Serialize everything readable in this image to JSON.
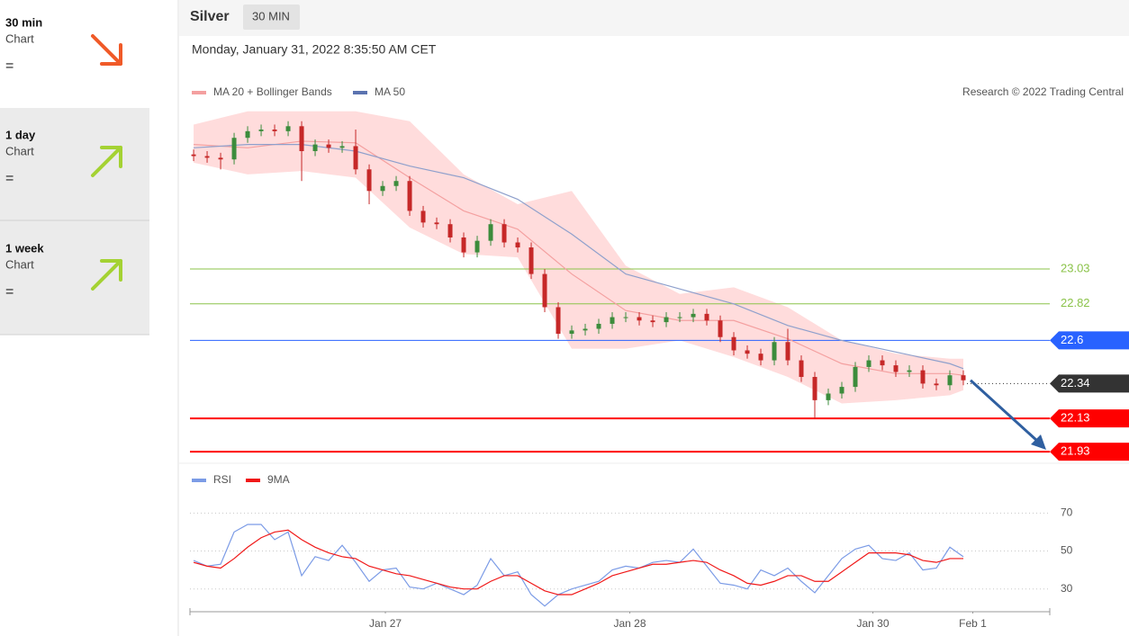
{
  "sidebar": [
    {
      "period": "30 min",
      "kind": "Chart",
      "signal": "="
    },
    {
      "period": "1 day",
      "kind": "Chart",
      "signal": "="
    },
    {
      "period": "1 week",
      "kind": "Chart",
      "signal": "="
    }
  ],
  "header": {
    "instrument": "Silver",
    "timeframe": "30 MIN",
    "timestamp": "Monday, January 31, 2022 8:35:50 AM CET"
  },
  "chart_data": [
    {
      "type": "candlestick",
      "credit": "Research © 2022 Trading Central",
      "ylim": [
        21.86,
        24.0
      ],
      "xlim": [
        -0.27,
        63.4
      ],
      "up_color": "#3c8c3c",
      "down_color": "#c62828",
      "open": [
        23.72,
        23.71,
        23.7,
        23.69,
        23.82,
        23.86,
        23.87,
        23.86,
        23.89,
        23.74,
        23.78,
        23.76,
        23.77,
        23.63,
        23.5,
        23.53,
        23.56,
        23.38,
        23.31,
        23.3,
        23.22,
        23.13,
        23.2,
        23.3,
        23.19,
        23.16,
        23.0,
        22.8,
        22.64,
        22.66,
        22.67,
        22.7,
        22.74,
        22.74,
        22.72,
        22.71,
        22.74,
        22.74,
        22.76,
        22.72,
        22.62,
        22.54,
        22.52,
        22.48,
        22.59,
        22.48,
        22.38,
        22.24,
        22.28,
        22.32,
        22.44,
        22.48,
        22.45,
        22.41,
        22.42,
        22.34,
        22.33,
        22.39
      ],
      "high": [
        23.75,
        23.74,
        23.73,
        23.85,
        23.89,
        23.9,
        23.9,
        23.92,
        23.92,
        23.81,
        23.81,
        23.8,
        23.87,
        23.66,
        23.56,
        23.59,
        23.59,
        23.41,
        23.34,
        23.33,
        23.25,
        23.23,
        23.33,
        23.33,
        23.22,
        23.19,
        23.03,
        22.83,
        22.69,
        22.7,
        22.73,
        22.77,
        22.77,
        22.77,
        22.75,
        22.77,
        22.77,
        22.79,
        22.79,
        22.75,
        22.65,
        22.57,
        22.55,
        22.62,
        22.67,
        22.51,
        22.41,
        22.31,
        22.35,
        22.47,
        22.51,
        22.51,
        22.48,
        22.45,
        22.45,
        22.37,
        22.42,
        22.42
      ],
      "low": [
        23.68,
        23.67,
        23.63,
        23.66,
        23.79,
        23.83,
        23.83,
        23.83,
        23.56,
        23.71,
        23.73,
        23.73,
        23.6,
        23.42,
        23.47,
        23.5,
        23.35,
        23.28,
        23.27,
        23.19,
        23.1,
        23.1,
        23.17,
        23.16,
        23.13,
        22.97,
        22.77,
        22.61,
        22.61,
        22.63,
        22.64,
        22.67,
        22.71,
        22.69,
        22.68,
        22.68,
        22.71,
        22.71,
        22.69,
        22.59,
        22.51,
        22.49,
        22.45,
        22.45,
        22.45,
        22.35,
        22.13,
        22.21,
        22.25,
        22.29,
        22.41,
        22.42,
        22.38,
        22.38,
        22.31,
        22.3,
        22.3,
        22.33
      ],
      "close": [
        23.71,
        23.7,
        23.69,
        23.82,
        23.86,
        23.87,
        23.86,
        23.89,
        23.74,
        23.78,
        23.76,
        23.77,
        23.63,
        23.5,
        23.53,
        23.56,
        23.38,
        23.31,
        23.3,
        23.22,
        23.13,
        23.2,
        23.3,
        23.19,
        23.16,
        23.0,
        22.8,
        22.64,
        22.66,
        22.67,
        22.7,
        22.74,
        22.74,
        22.72,
        22.71,
        22.74,
        22.74,
        22.76,
        22.72,
        22.62,
        22.54,
        22.52,
        22.48,
        22.59,
        22.48,
        22.38,
        22.24,
        22.28,
        22.32,
        22.44,
        22.48,
        22.45,
        22.41,
        22.42,
        22.34,
        22.33,
        22.39,
        22.36
      ],
      "series": [
        {
          "name": "MA 20 + Bollinger Bands",
          "color": "#f4a0a0",
          "band_color": "#ffdcdc",
          "x": [
            0,
            4,
            8,
            12,
            16,
            20,
            24,
            28,
            32,
            36,
            40,
            44,
            48,
            52,
            56,
            57
          ],
          "values": [
            23.78,
            23.76,
            23.8,
            23.79,
            23.58,
            23.38,
            23.27,
            23.0,
            22.78,
            22.72,
            22.72,
            22.61,
            22.46,
            22.4,
            22.4,
            22.39
          ],
          "upper": [
            23.9,
            23.98,
            23.98,
            23.98,
            23.92,
            23.6,
            23.42,
            23.5,
            23.05,
            22.88,
            22.92,
            22.8,
            22.6,
            22.52,
            22.49,
            22.49
          ],
          "lower": [
            23.67,
            23.6,
            23.62,
            23.58,
            23.28,
            23.12,
            23.1,
            22.55,
            22.55,
            22.6,
            22.5,
            22.38,
            22.22,
            22.24,
            22.27,
            22.3
          ]
        },
        {
          "name": "MA 50",
          "color": "#5b73b0",
          "line_color": "#8fa0cc",
          "x": [
            0,
            4,
            8,
            12,
            16,
            20,
            24,
            28,
            32,
            36,
            40,
            44,
            48,
            52,
            56,
            57
          ],
          "values": [
            23.76,
            23.78,
            23.78,
            23.74,
            23.65,
            23.58,
            23.45,
            23.24,
            23.0,
            22.91,
            22.82,
            22.69,
            22.6,
            22.53,
            22.46,
            22.43
          ]
        }
      ],
      "levels": [
        {
          "value": 23.03,
          "color": "#8bc34a",
          "badge": false,
          "line_style": "solid",
          "line_width": 1
        },
        {
          "value": 22.82,
          "color": "#8bc34a",
          "badge": false,
          "line_style": "solid",
          "line_width": 1
        },
        {
          "value": 22.6,
          "color": "#2962ff",
          "badge": true,
          "line_style": "solid",
          "line_width": 1
        },
        {
          "value": 22.34,
          "color": "#333333",
          "badge": true,
          "line_style": "dotted",
          "line_width": 1
        },
        {
          "value": 22.13,
          "color": "#ff0000",
          "badge": true,
          "line_style": "solid",
          "line_width": 2
        },
        {
          "value": 21.93,
          "color": "#ff0000",
          "badge": true,
          "line_style": "solid",
          "line_width": 2
        }
      ]
    },
    {
      "type": "line",
      "ylim": [
        18,
        82
      ],
      "xlim": [
        -0.27,
        63.4
      ],
      "yticks": [
        30,
        50,
        70
      ],
      "grid": true,
      "xticks": [
        {
          "value": 14.2,
          "label": "Jan 27"
        },
        {
          "value": 32.3,
          "label": "Jan 28"
        },
        {
          "value": 50.3,
          "label": "Jan 30"
        },
        {
          "value": 57.7,
          "label": "Feb 1"
        }
      ],
      "series": [
        {
          "name": "RSI",
          "color": "#7b9be6",
          "values": [
            45,
            42,
            43,
            60,
            64,
            64,
            56,
            60,
            37,
            47,
            45,
            53,
            44,
            34,
            40,
            41,
            31,
            30,
            33,
            30,
            27,
            32,
            46,
            37,
            39,
            27,
            21,
            27,
            30,
            32,
            34,
            40,
            42,
            41,
            44,
            45,
            44,
            51,
            42,
            33,
            32,
            30,
            40,
            37,
            41,
            34,
            28,
            37,
            46,
            51,
            53,
            46,
            45,
            49,
            40,
            41,
            52,
            47
          ]
        },
        {
          "name": "9MA",
          "color": "#f01818",
          "values": [
            44,
            42,
            41,
            46,
            52,
            57,
            60,
            61,
            56,
            52,
            49,
            47,
            46,
            42,
            40,
            38,
            37,
            35,
            33,
            31,
            30,
            30,
            34,
            37,
            37,
            33,
            29,
            27,
            27,
            30,
            33,
            37,
            39,
            41,
            43,
            43,
            44,
            45,
            44,
            40,
            37,
            33,
            32,
            34,
            37,
            37,
            34,
            34,
            39,
            44,
            49,
            49,
            49,
            48,
            45,
            44,
            46,
            46
          ]
        }
      ]
    }
  ]
}
